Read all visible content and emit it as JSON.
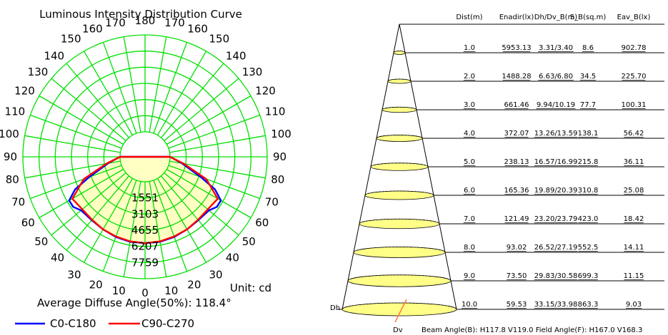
{
  "chart_data": [
    {
      "type": "polar",
      "title": "Luminous Intensity Distribution Curve",
      "radial_ticks": [
        "1551",
        "3103",
        "4655",
        "6207",
        "7759"
      ],
      "angle_labels_left": [
        "0",
        "10",
        "20",
        "30",
        "40",
        "50",
        "60",
        "70",
        "80",
        "90",
        "100",
        "110",
        "120",
        "130",
        "140",
        "150",
        "160",
        "170"
      ],
      "angle_labels_right": [
        "10",
        "20",
        "30",
        "40",
        "50",
        "60",
        "70",
        "80",
        "90",
        "100",
        "110",
        "120",
        "130",
        "140",
        "150",
        "160",
        "170"
      ],
      "angle_label_top": "180",
      "unit": "Unit: cd",
      "average_angle": "Average Diffuse Angle(50%): 118.4°",
      "series": [
        {
          "name": "C0-C180",
          "color": "#0000ff",
          "angles": [
            0,
            10,
            20,
            30,
            40,
            50,
            55,
            60,
            65,
            70,
            80,
            90
          ],
          "values": [
            5900,
            5900,
            5800,
            5650,
            5550,
            5600,
            6000,
            6000,
            5000,
            3300,
            1200,
            0
          ]
        },
        {
          "name": "C90-C270",
          "color": "#ff0000",
          "angles": [
            0,
            10,
            20,
            30,
            40,
            50,
            60,
            70,
            80,
            90
          ],
          "values": [
            5900,
            5850,
            5750,
            5650,
            5500,
            5450,
            5650,
            3850,
            1350,
            0
          ]
        }
      ],
      "colors": {
        "grid": "#00e000",
        "fill": "#ffffc4"
      }
    },
    {
      "type": "table",
      "headers": [
        "Dist(m)",
        "Enadir(lx)",
        "Dh/Dv_B(m)",
        "S_B(sq.m)",
        "Eav_B(lx)"
      ],
      "rows": [
        [
          "1.0",
          "5953.13",
          "3.31/3.40",
          "8.6",
          "902.78"
        ],
        [
          "2.0",
          "1488.28",
          "6.63/6.80",
          "34.5",
          "225.70"
        ],
        [
          "3.0",
          "661.46",
          "9.94/10.19",
          "77.7",
          "100.31"
        ],
        [
          "4.0",
          "372.07",
          "13.26/13.59",
          "138.1",
          "56.42"
        ],
        [
          "5.0",
          "238.13",
          "16.57/16.99",
          "215.8",
          "36.11"
        ],
        [
          "6.0",
          "165.36",
          "19.89/20.39",
          "310.8",
          "25.08"
        ],
        [
          "7.0",
          "121.49",
          "23.20/23.79",
          "423.0",
          "18.42"
        ],
        [
          "8.0",
          "93.02",
          "26.52/27.19",
          "552.5",
          "14.11"
        ],
        [
          "9.0",
          "73.50",
          "29.83/30.58",
          "699.3",
          "11.15"
        ],
        [
          "10.0",
          "59.53",
          "33.15/33.98",
          "863.3",
          "9.03"
        ]
      ],
      "labels": {
        "dh": "Dh",
        "dv": "Dv",
        "beam": "Beam Angle(B): H117.8 V119.0  Field Angle(F): H167.0 V168.3"
      },
      "colors": {
        "ellipse": "#ffff88",
        "marker": "#ff8040"
      }
    }
  ]
}
